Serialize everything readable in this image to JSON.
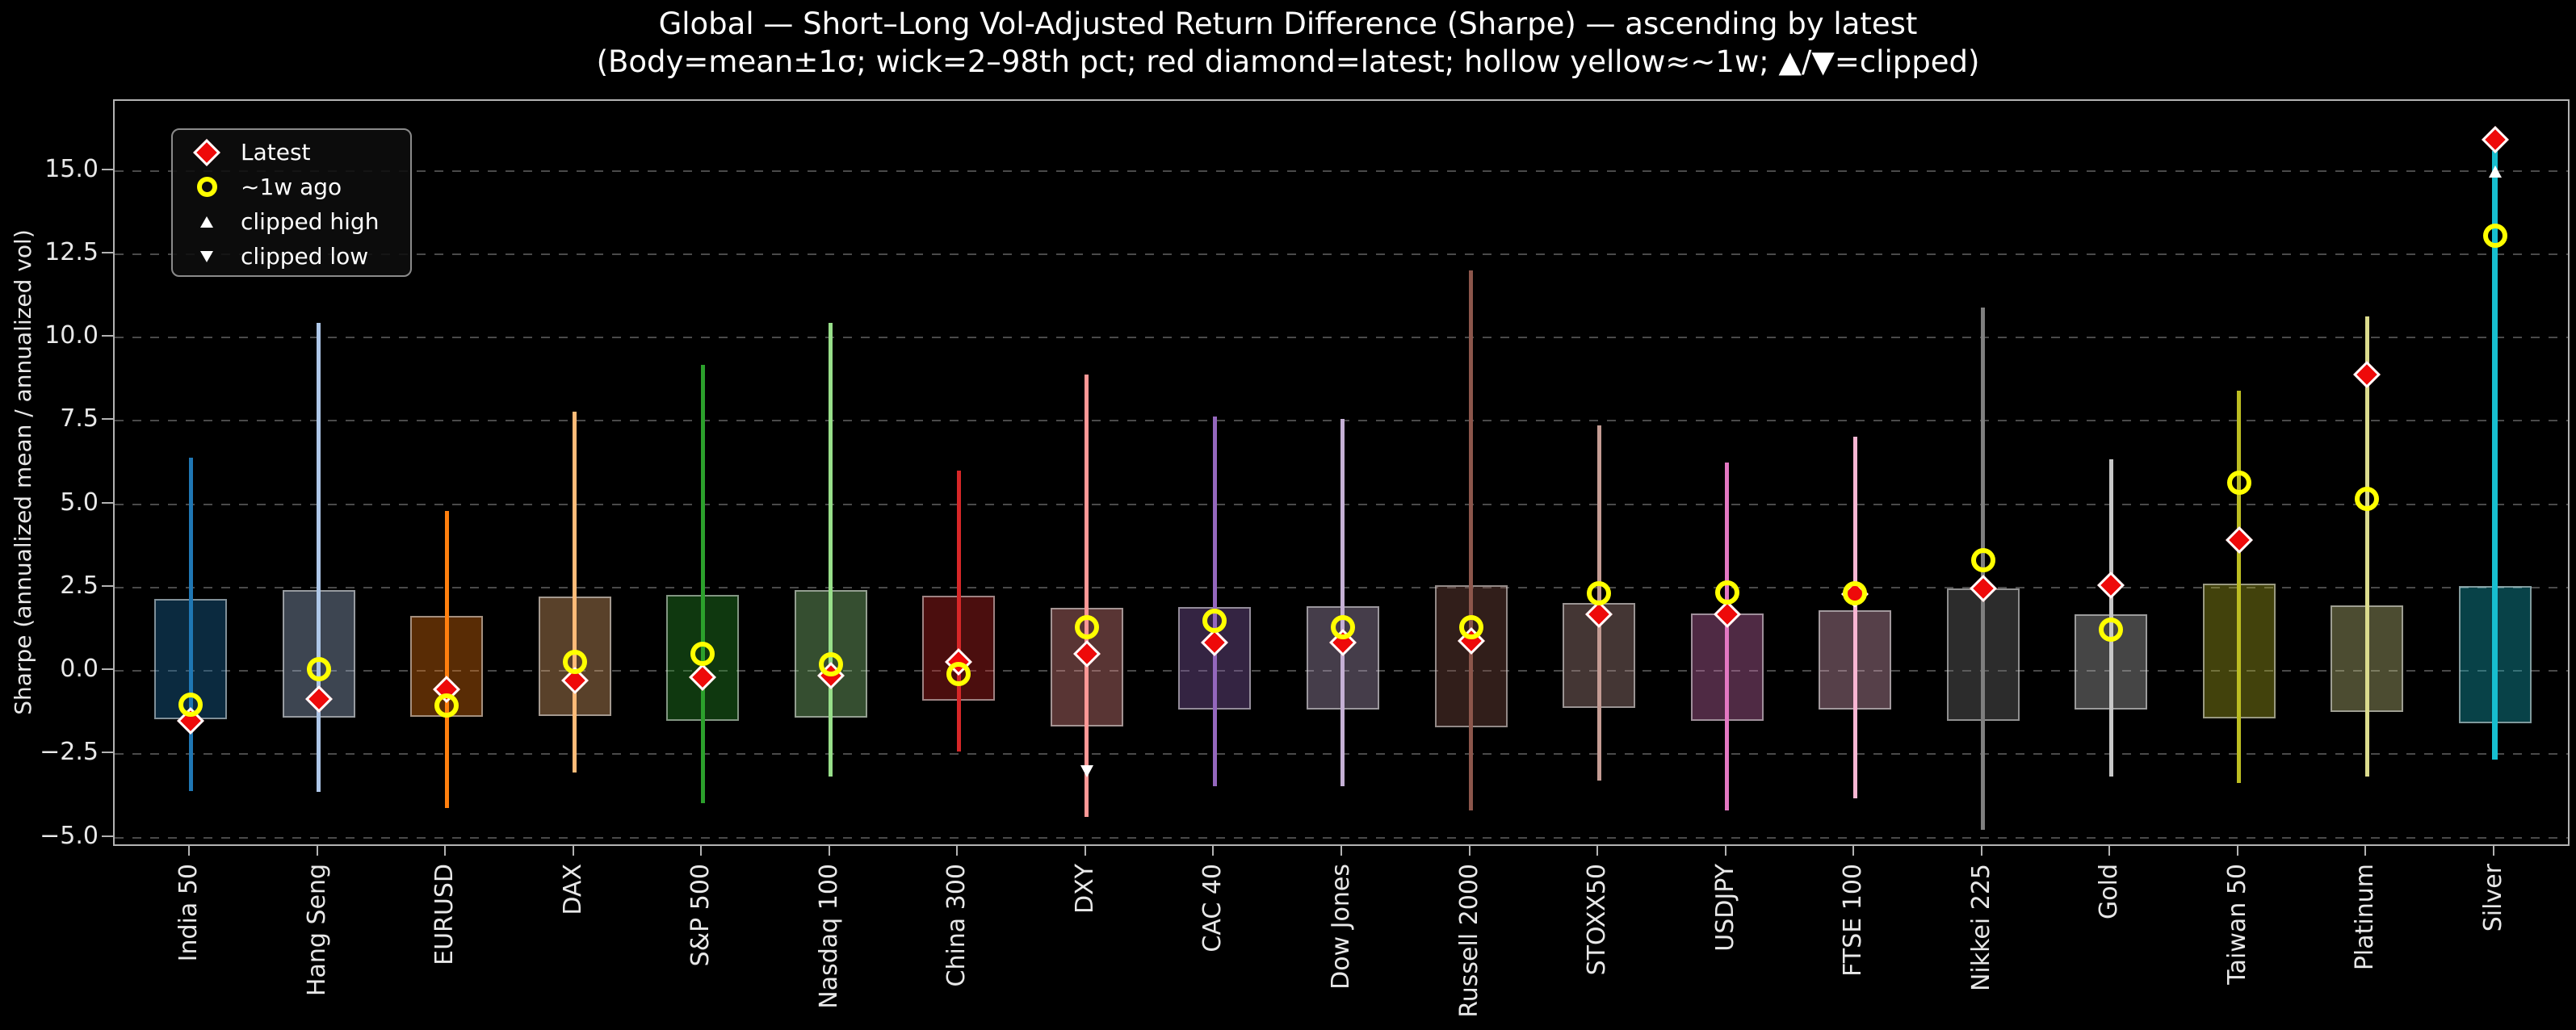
{
  "chart_data": {
    "type": "candle-range",
    "title": "Global — Short–Long Vol-Adjusted Return Difference (Sharpe) — ascending by latest",
    "subtitle": "(Body=mean±1σ; wick=2–98th pct; red diamond=latest; hollow yellow≈~1w; ▲/▼=clipped)",
    "ylabel": "Sharpe (annualized mean / annualized vol)",
    "ylim": [
      -5.3,
      17.1
    ],
    "grid": "horizontal dashed gridlines at each y tick",
    "sort": "ascending by latest",
    "legend": {
      "position": "upper left",
      "items": [
        {
          "marker": "latest-diamond",
          "label": "Latest"
        },
        {
          "marker": "week-ago-circle",
          "label": "~1w ago"
        },
        {
          "marker": "clipped-high-triangle",
          "label": "clipped high"
        },
        {
          "marker": "clipped-low-triangle",
          "label": "clipped low"
        }
      ]
    },
    "y_ticks": [
      {
        "label": "15.0",
        "value": 15.0
      },
      {
        "label": "12.5",
        "value": 12.5
      },
      {
        "label": "10.0",
        "value": 10.0
      },
      {
        "label": "7.5",
        "value": 7.5
      },
      {
        "label": "5.0",
        "value": 5.0
      },
      {
        "label": "2.5",
        "value": 2.5
      },
      {
        "label": "0.0",
        "value": 0.0
      },
      {
        "label": "−2.5",
        "value": -2.5
      },
      {
        "label": "−5.0",
        "value": -5.0
      }
    ],
    "marker_colors": {
      "latest": "#ee0a0a",
      "week_ago": "#ffff00",
      "clipped": "#ffffff"
    },
    "instruments": [
      {
        "name": "India 50",
        "color": "#1f77b4",
        "wick_low": -3.6,
        "wick_high": 6.39,
        "box_low": -1.44,
        "box_high": 2.17,
        "latest": -1.5,
        "week_ago": -1.01,
        "clipped": null
      },
      {
        "name": "Hang Seng",
        "color": "#aec7e8",
        "wick_low": -3.62,
        "wick_high": 10.43,
        "box_low": -1.39,
        "box_high": 2.42,
        "latest": -0.85,
        "week_ago": 0.05,
        "clipped": null
      },
      {
        "name": "EURUSD",
        "color": "#ff7f0e",
        "wick_low": -4.11,
        "wick_high": 4.8,
        "box_low": -1.37,
        "box_high": 1.66,
        "latest": -0.56,
        "week_ago": -1.03,
        "clipped": null
      },
      {
        "name": "DAX",
        "color": "#ffbb78",
        "wick_low": -3.05,
        "wick_high": 7.78,
        "box_low": -1.35,
        "box_high": 2.23,
        "latest": -0.29,
        "week_ago": 0.26,
        "clipped": null
      },
      {
        "name": "S&P 500",
        "color": "#2ca02c",
        "wick_low": -3.96,
        "wick_high": 9.18,
        "box_low": -1.5,
        "box_high": 2.28,
        "latest": -0.19,
        "week_ago": 0.5,
        "clipped": null
      },
      {
        "name": "Nasdaq 100",
        "color": "#98df8a",
        "wick_low": -3.16,
        "wick_high": 10.43,
        "box_low": -1.39,
        "box_high": 2.42,
        "latest": -0.15,
        "week_ago": 0.19,
        "clipped": null
      },
      {
        "name": "China 300",
        "color": "#d62728",
        "wick_low": -2.42,
        "wick_high": 6.02,
        "box_low": -0.9,
        "box_high": 2.25,
        "latest": 0.27,
        "week_ago": -0.1,
        "clipped": null
      },
      {
        "name": "DXY",
        "color": "#ff9896",
        "wick_low": -4.37,
        "wick_high": 8.88,
        "box_low": -1.66,
        "box_high": 1.9,
        "latest": 0.52,
        "week_ago": 1.32,
        "clipped": "low",
        "clip_value": -3.0
      },
      {
        "name": "CAC 40",
        "color": "#9467bd",
        "wick_low": -3.45,
        "wick_high": 7.64,
        "box_low": -1.15,
        "box_high": 1.91,
        "latest": 0.84,
        "week_ago": 1.5,
        "clipped": null
      },
      {
        "name": "Dow Jones",
        "color": "#c5b0d5",
        "wick_low": -3.45,
        "wick_high": 7.56,
        "box_low": -1.15,
        "box_high": 1.95,
        "latest": 0.84,
        "week_ago": 1.32,
        "clipped": null
      },
      {
        "name": "Russell 2000",
        "color": "#8c564b",
        "wick_low": -4.19,
        "wick_high": 12.01,
        "box_low": -1.69,
        "box_high": 2.57,
        "latest": 0.91,
        "week_ago": 1.32,
        "clipped": null
      },
      {
        "name": "STOXX50",
        "color": "#c49c94",
        "wick_low": -3.3,
        "wick_high": 7.37,
        "box_low": -1.1,
        "box_high": 2.03,
        "latest": 1.69,
        "week_ago": 2.32,
        "clipped": null
      },
      {
        "name": "USDJPY",
        "color": "#e377c2",
        "wick_low": -4.19,
        "wick_high": 6.24,
        "box_low": -1.5,
        "box_high": 1.73,
        "latest": 1.69,
        "week_ago": 2.35,
        "clipped": null
      },
      {
        "name": "FTSE 100",
        "color": "#f7b6d2",
        "wick_low": -3.82,
        "wick_high": 7.02,
        "box_low": -1.15,
        "box_high": 1.81,
        "latest": 2.3,
        "week_ago": 2.32,
        "clipped": null
      },
      {
        "name": "Nikkei 225",
        "color": "#7f7f7f",
        "wick_low": -4.77,
        "wick_high": 10.9,
        "box_low": -1.5,
        "box_high": 2.48,
        "latest": 2.48,
        "week_ago": 3.32,
        "clipped": null
      },
      {
        "name": "Gold",
        "color": "#c7c7c7",
        "wick_low": -3.16,
        "wick_high": 6.34,
        "box_low": -1.17,
        "box_high": 1.71,
        "latest": 2.57,
        "week_ago": 1.23,
        "clipped": null
      },
      {
        "name": "Taiwan 50",
        "color": "#bcbd22",
        "wick_low": -3.37,
        "wick_high": 8.4,
        "box_low": -1.43,
        "box_high": 2.61,
        "latest": 3.92,
        "week_ago": 5.65,
        "clipped": null
      },
      {
        "name": "Platinum",
        "color": "#dbdb8d",
        "wick_low": -3.17,
        "wick_high": 10.63,
        "box_low": -1.24,
        "box_high": 1.96,
        "latest": 8.9,
        "week_ago": 5.15,
        "clipped": null
      },
      {
        "name": "Silver",
        "color": "#17becf",
        "wick_low": -2.65,
        "wick_high": 15.6,
        "box_low": -1.57,
        "box_high": 2.54,
        "latest": 15.93,
        "week_ago": 13.05,
        "clipped": "high",
        "clip_value": 15.0,
        "wick_width": 7
      }
    ]
  }
}
